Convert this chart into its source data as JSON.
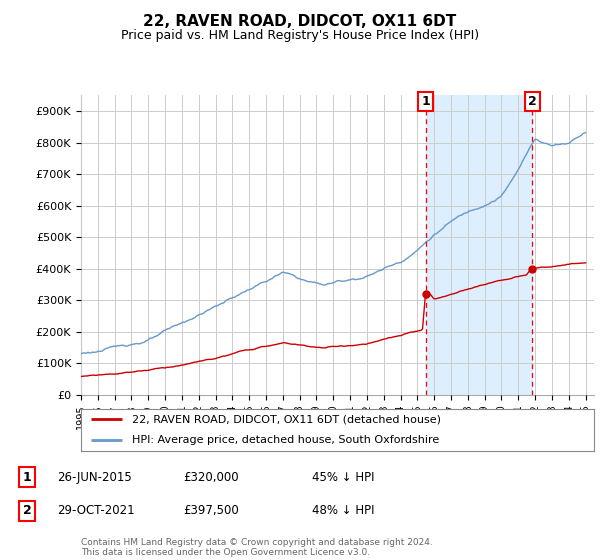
{
  "title": "22, RAVEN ROAD, DIDCOT, OX11 6DT",
  "subtitle": "Price paid vs. HM Land Registry's House Price Index (HPI)",
  "title_fontsize": 11,
  "subtitle_fontsize": 9,
  "ylim": [
    0,
    950000
  ],
  "yticks": [
    0,
    100000,
    200000,
    300000,
    400000,
    500000,
    600000,
    700000,
    800000,
    900000
  ],
  "ytick_labels": [
    "£0",
    "£100K",
    "£200K",
    "£300K",
    "£400K",
    "£500K",
    "£600K",
    "£700K",
    "£800K",
    "£900K"
  ],
  "bg_color": "#ffffff",
  "grid_color": "#cccccc",
  "red_color": "#cc0000",
  "blue_color": "#6699cc",
  "shade_color": "#ddeeff",
  "marker1_date": 2015.49,
  "marker1_price": 320000,
  "marker2_date": 2021.83,
  "marker2_price": 397500,
  "legend_line1": "22, RAVEN ROAD, DIDCOT, OX11 6DT (detached house)",
  "legend_line2": "HPI: Average price, detached house, South Oxfordshire",
  "annotation1_label": "1",
  "annotation1_text": "26-JUN-2015",
  "annotation1_price": "£320,000",
  "annotation1_pct": "45% ↓ HPI",
  "annotation2_label": "2",
  "annotation2_text": "29-OCT-2021",
  "annotation2_price": "£397,500",
  "annotation2_pct": "48% ↓ HPI",
  "footer": "Contains HM Land Registry data © Crown copyright and database right 2024.\nThis data is licensed under the Open Government Licence v3.0.",
  "xmin": 1995.0,
  "xmax": 2025.5
}
